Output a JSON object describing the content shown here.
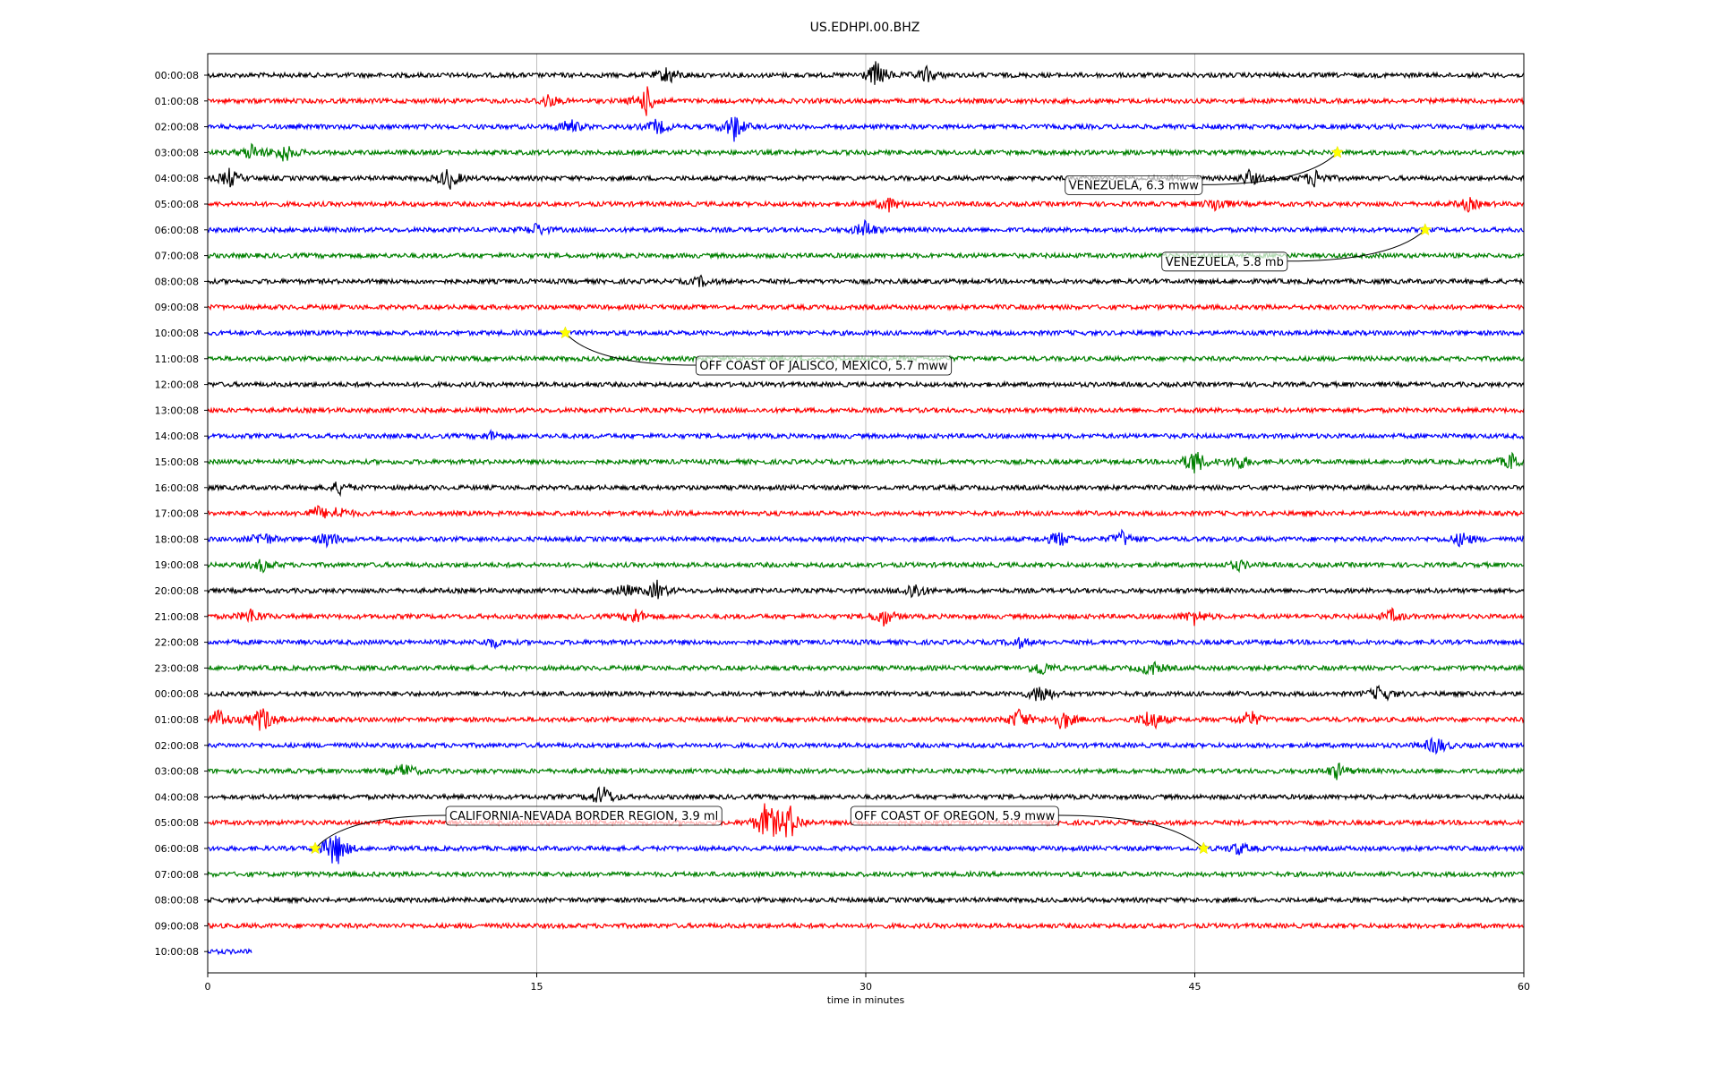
{
  "chart_data": {
    "type": "line",
    "title": "US.EDHPI.00.BHZ",
    "xlabel": "time in minutes",
    "xlim": [
      0,
      60
    ],
    "x_ticks": [
      "0",
      "15",
      "30",
      "45",
      "60"
    ],
    "x_tick_values": [
      0,
      15,
      30,
      45,
      60
    ],
    "grid": "vertical-at-ticks",
    "colors": [
      "#000000",
      "#ff0000",
      "#0000ff",
      "#008000"
    ],
    "row_labels": [
      "00:00:08",
      "01:00:08",
      "02:00:08",
      "03:00:08",
      "04:00:08",
      "05:00:08",
      "06:00:08",
      "07:00:08",
      "08:00:08",
      "09:00:08",
      "10:00:08",
      "11:00:08",
      "12:00:08",
      "13:00:08",
      "14:00:08",
      "15:00:08",
      "16:00:08",
      "17:00:08",
      "18:00:08",
      "19:00:08",
      "20:00:08",
      "21:00:08",
      "22:00:08",
      "23:00:08",
      "00:00:08",
      "01:00:08",
      "02:00:08",
      "03:00:08",
      "04:00:08",
      "05:00:08",
      "06:00:08",
      "07:00:08",
      "08:00:08",
      "09:00:08",
      "10:00:08"
    ],
    "last_row_end_minute": 2,
    "events": [
      {
        "label": "VENEZUELA, 6.3 mww",
        "row": 3,
        "minute": 51.5
      },
      {
        "label": "VENEZUELA, 5.8 mb",
        "row": 6,
        "minute": 55.5
      },
      {
        "label": "OFF COAST OF JALISCO, MEXICO, 5.7 mww",
        "row": 10,
        "minute": 16.3
      },
      {
        "label": "CALIFORNIA-NEVADA BORDER REGION, 3.9 ml",
        "row": 30,
        "minute": 4.9
      },
      {
        "label": "OFF COAST OF OREGON, 5.9 mww",
        "row": 30,
        "minute": 45.4
      }
    ],
    "bursts": [
      {
        "row": 0,
        "minute": 21.0,
        "amp": 0.6
      },
      {
        "row": 0,
        "minute": 30.5,
        "amp": 0.9
      },
      {
        "row": 0,
        "minute": 32.8,
        "amp": 0.5
      },
      {
        "row": 1,
        "minute": 15.5,
        "amp": 0.4
      },
      {
        "row": 1,
        "minute": 20.0,
        "amp": 0.9
      },
      {
        "row": 2,
        "minute": 16.5,
        "amp": 0.5
      },
      {
        "row": 2,
        "minute": 20.5,
        "amp": 0.5
      },
      {
        "row": 2,
        "minute": 24.0,
        "amp": 0.9
      },
      {
        "row": 3,
        "minute": 2.0,
        "amp": 0.5
      },
      {
        "row": 3,
        "minute": 3.5,
        "amp": 0.6
      },
      {
        "row": 4,
        "minute": 1.0,
        "amp": 0.6
      },
      {
        "row": 4,
        "minute": 11.0,
        "amp": 0.7
      },
      {
        "row": 4,
        "minute": 47.5,
        "amp": 0.5
      },
      {
        "row": 4,
        "minute": 50.5,
        "amp": 0.6
      },
      {
        "row": 5,
        "minute": 31.0,
        "amp": 0.5
      },
      {
        "row": 5,
        "minute": 46.0,
        "amp": 0.5
      },
      {
        "row": 5,
        "minute": 57.5,
        "amp": 0.4
      },
      {
        "row": 6,
        "minute": 15.0,
        "amp": 0.4
      },
      {
        "row": 6,
        "minute": 30.0,
        "amp": 0.6
      },
      {
        "row": 8,
        "minute": 22.5,
        "amp": 0.3
      },
      {
        "row": 14,
        "minute": 13.0,
        "amp": 0.3
      },
      {
        "row": 15,
        "minute": 45.0,
        "amp": 0.9
      },
      {
        "row": 15,
        "minute": 47.0,
        "amp": 0.5
      },
      {
        "row": 15,
        "minute": 59.5,
        "amp": 0.6
      },
      {
        "row": 16,
        "minute": 6.0,
        "amp": 0.4
      },
      {
        "row": 17,
        "minute": 5.0,
        "amp": 0.4
      },
      {
        "row": 17,
        "minute": 6.0,
        "amp": 0.4
      },
      {
        "row": 18,
        "minute": 2.5,
        "amp": 0.5
      },
      {
        "row": 18,
        "minute": 5.5,
        "amp": 0.5
      },
      {
        "row": 18,
        "minute": 38.8,
        "amp": 0.5
      },
      {
        "row": 18,
        "minute": 41.7,
        "amp": 0.5
      },
      {
        "row": 18,
        "minute": 57.2,
        "amp": 0.5
      },
      {
        "row": 19,
        "minute": 2.5,
        "amp": 0.4
      },
      {
        "row": 19,
        "minute": 47.0,
        "amp": 0.3
      },
      {
        "row": 20,
        "minute": 19.0,
        "amp": 0.4
      },
      {
        "row": 20,
        "minute": 20.5,
        "amp": 0.6
      },
      {
        "row": 20,
        "minute": 32.2,
        "amp": 0.6
      },
      {
        "row": 21,
        "minute": 2.0,
        "amp": 0.5
      },
      {
        "row": 21,
        "minute": 19.5,
        "amp": 0.5
      },
      {
        "row": 21,
        "minute": 30.8,
        "amp": 0.6
      },
      {
        "row": 21,
        "minute": 45.0,
        "amp": 0.5
      },
      {
        "row": 21,
        "minute": 54.0,
        "amp": 0.4
      },
      {
        "row": 22,
        "minute": 13.0,
        "amp": 0.3
      },
      {
        "row": 22,
        "minute": 37.0,
        "amp": 0.3
      },
      {
        "row": 23,
        "minute": 38.0,
        "amp": 0.5
      },
      {
        "row": 23,
        "minute": 43.0,
        "amp": 0.5
      },
      {
        "row": 24,
        "minute": 38.0,
        "amp": 0.7
      },
      {
        "row": 24,
        "minute": 53.5,
        "amp": 0.6
      },
      {
        "row": 25,
        "minute": 0.5,
        "amp": 0.7
      },
      {
        "row": 25,
        "minute": 2.5,
        "amp": 0.9
      },
      {
        "row": 25,
        "minute": 37.0,
        "amp": 0.7
      },
      {
        "row": 25,
        "minute": 39.0,
        "amp": 0.7
      },
      {
        "row": 25,
        "minute": 43.0,
        "amp": 0.8
      },
      {
        "row": 25,
        "minute": 47.5,
        "amp": 0.6
      },
      {
        "row": 26,
        "minute": 56.0,
        "amp": 0.6
      },
      {
        "row": 27,
        "minute": 9.0,
        "amp": 0.5
      },
      {
        "row": 27,
        "minute": 51.5,
        "amp": 0.5
      },
      {
        "row": 28,
        "minute": 18.0,
        "amp": 0.8
      },
      {
        "row": 29,
        "minute": 25.5,
        "amp": 1.5
      },
      {
        "row": 29,
        "minute": 26.5,
        "amp": 1.2
      },
      {
        "row": 30,
        "minute": 5.8,
        "amp": 1.4
      },
      {
        "row": 30,
        "minute": 47.0,
        "amp": 0.4
      }
    ]
  }
}
